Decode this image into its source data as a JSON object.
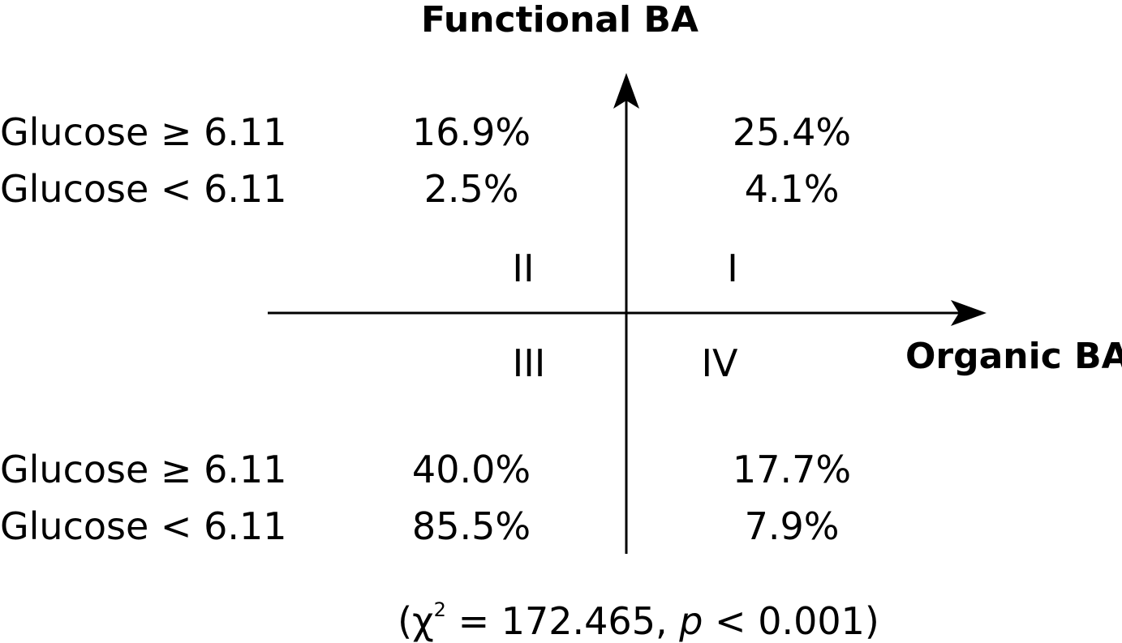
{
  "axes": {
    "y_label": "Functional BA",
    "x_label": "Organic BA"
  },
  "quadrant_labels": {
    "I": "I",
    "II": "II",
    "III": "III",
    "IV": "IV"
  },
  "top": {
    "row_labels": [
      "Glucose ≥ 6.11",
      "Glucose < 6.11"
    ],
    "left_values": [
      "16.9%",
      "2.5%"
    ],
    "right_values": [
      "25.4%",
      "4.1%"
    ]
  },
  "bottom": {
    "row_labels": [
      "Glucose ≥ 6.11",
      "Glucose < 6.11"
    ],
    "left_values": [
      "40.0%",
      "85.5%"
    ],
    "right_values": [
      "17.7%",
      "7.9%"
    ]
  },
  "stats": {
    "open": "(",
    "chi": "χ",
    "sup": "2",
    "eq": " = 172.465, ",
    "p": "p",
    "rest": " < 0.001)"
  }
}
